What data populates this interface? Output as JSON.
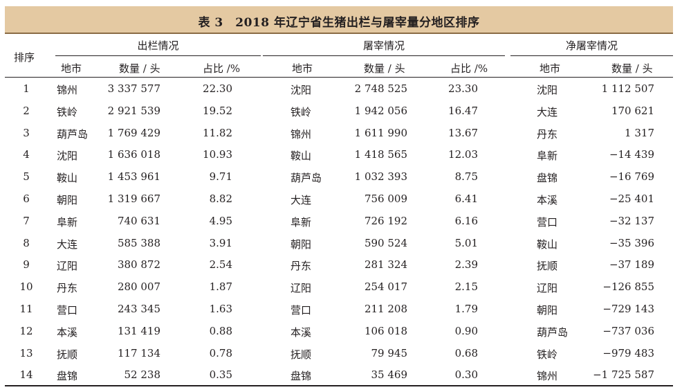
{
  "title": "表 3　2018 年辽宁省生猪出栏与屠宰量分地区排序",
  "headers": {
    "rank": "排序",
    "groups": [
      "出栏情况",
      "屠宰情况",
      "净屠宰情况"
    ],
    "city": "地市",
    "quantity": "数量 / 头",
    "share": "占比 /%"
  },
  "rows": [
    {
      "rank": "1",
      "out_city": "锦州",
      "out_qty": "3 337 577",
      "out_pct": "22.30",
      "sl_city": "沈阳",
      "sl_qty": "2 748 525",
      "sl_pct": "23.30",
      "net_city": "沈阳",
      "net_qty": "1 112 507"
    },
    {
      "rank": "2",
      "out_city": "铁岭",
      "out_qty": "2 921 539",
      "out_pct": "19.52",
      "sl_city": "铁岭",
      "sl_qty": "1 942 056",
      "sl_pct": "16.47",
      "net_city": "大连",
      "net_qty": "170 621"
    },
    {
      "rank": "3",
      "out_city": "葫芦岛",
      "out_qty": "1 769 429",
      "out_pct": "11.82",
      "sl_city": "锦州",
      "sl_qty": "1 611 990",
      "sl_pct": "13.67",
      "net_city": "丹东",
      "net_qty": "1 317"
    },
    {
      "rank": "4",
      "out_city": "沈阳",
      "out_qty": "1 636 018",
      "out_pct": "10.93",
      "sl_city": "鞍山",
      "sl_qty": "1 418 565",
      "sl_pct": "12.03",
      "net_city": "阜新",
      "net_qty": "−14 439"
    },
    {
      "rank": "5",
      "out_city": "鞍山",
      "out_qty": "1 453 961",
      "out_pct": "9.71",
      "sl_city": "葫芦岛",
      "sl_qty": "1 032 393",
      "sl_pct": "8.75",
      "net_city": "盘锦",
      "net_qty": "−16 769"
    },
    {
      "rank": "6",
      "out_city": "朝阳",
      "out_qty": "1 319 667",
      "out_pct": "8.82",
      "sl_city": "大连",
      "sl_qty": "756 009",
      "sl_pct": "6.41",
      "net_city": "本溪",
      "net_qty": "−25 401"
    },
    {
      "rank": "7",
      "out_city": "阜新",
      "out_qty": "740 631",
      "out_pct": "4.95",
      "sl_city": "阜新",
      "sl_qty": "726 192",
      "sl_pct": "6.16",
      "net_city": "营口",
      "net_qty": "−32 137"
    },
    {
      "rank": "8",
      "out_city": "大连",
      "out_qty": "585 388",
      "out_pct": "3.91",
      "sl_city": "朝阳",
      "sl_qty": "590 524",
      "sl_pct": "5.01",
      "net_city": "鞍山",
      "net_qty": "−35 396"
    },
    {
      "rank": "9",
      "out_city": "辽阳",
      "out_qty": "380 872",
      "out_pct": "2.54",
      "sl_city": "丹东",
      "sl_qty": "281 324",
      "sl_pct": "2.39",
      "net_city": "抚顺",
      "net_qty": "−37 189"
    },
    {
      "rank": "10",
      "out_city": "丹东",
      "out_qty": "280 007",
      "out_pct": "1.87",
      "sl_city": "辽阳",
      "sl_qty": "254 017",
      "sl_pct": "2.15",
      "net_city": "辽阳",
      "net_qty": "−126 855"
    },
    {
      "rank": "11",
      "out_city": "营口",
      "out_qty": "243 345",
      "out_pct": "1.63",
      "sl_city": "营口",
      "sl_qty": "211 208",
      "sl_pct": "1.79",
      "net_city": "朝阳",
      "net_qty": "−729 143"
    },
    {
      "rank": "12",
      "out_city": "本溪",
      "out_qty": "131 419",
      "out_pct": "0.88",
      "sl_city": "本溪",
      "sl_qty": "106 018",
      "sl_pct": "0.90",
      "net_city": "葫芦岛",
      "net_qty": "−737 036"
    },
    {
      "rank": "13",
      "out_city": "抚顺",
      "out_qty": "117 134",
      "out_pct": "0.78",
      "sl_city": "抚顺",
      "sl_qty": "79 945",
      "sl_pct": "0.68",
      "net_city": "铁岭",
      "net_qty": "−979 483"
    },
    {
      "rank": "14",
      "out_city": "盘锦",
      "out_qty": "52 238",
      "out_pct": "0.35",
      "sl_city": "盘锦",
      "sl_qty": "35 469",
      "sl_pct": "0.30",
      "net_city": "锦州",
      "net_qty": "−1 725 587"
    }
  ]
}
